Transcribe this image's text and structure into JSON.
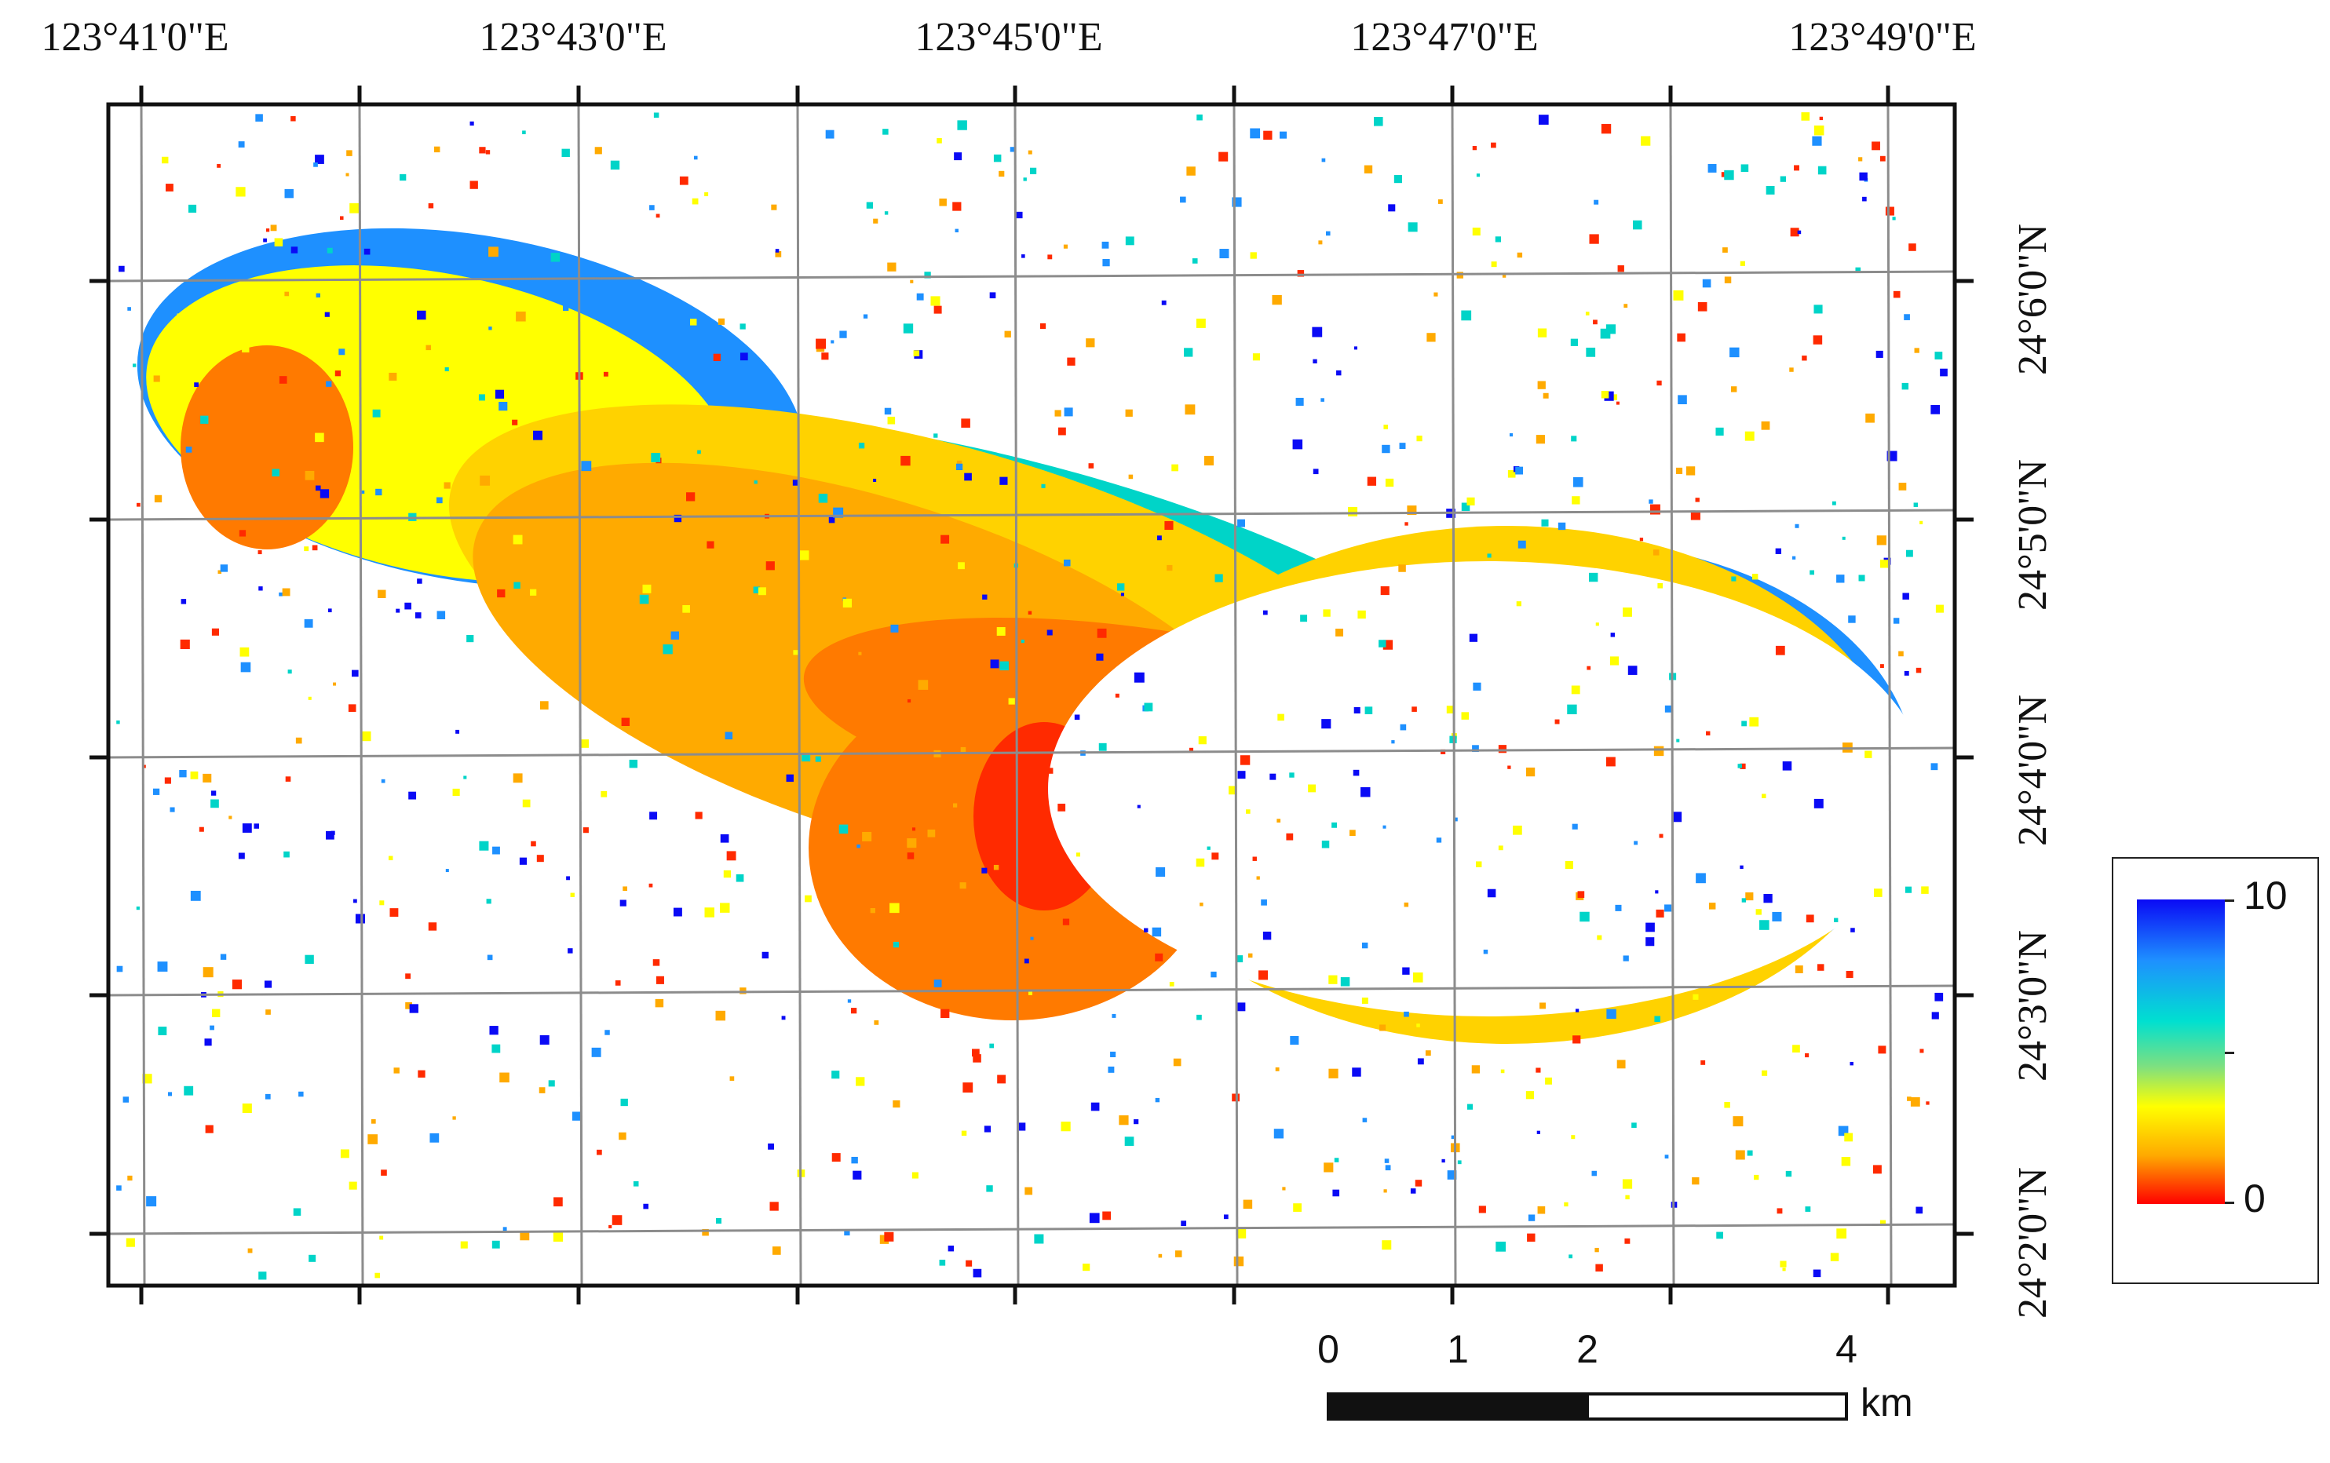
{
  "map": {
    "lon_labels": [
      "123°41'0\"E",
      "123°43'0\"E",
      "123°45'0\"E",
      "123°47'0\"E",
      "123°49'0\"E"
    ],
    "lat_labels": [
      "24°2'0\"N",
      "24°3'0\"N",
      "24°4'0\"N",
      "24°5'0\"N",
      "24°6'0\"N"
    ],
    "raster_colors": [
      "#ff2a00",
      "#ff7a00",
      "#ffaa00",
      "#ffd200",
      "#ffff00",
      "#00d4c8",
      "#1e90ff",
      "#0a0af5"
    ]
  },
  "scale_bar": {
    "ticks": [
      "0",
      "1",
      "2",
      "4"
    ],
    "unit": "km"
  },
  "legend": {
    "max_label": "10",
    "min_label": "0",
    "colors": [
      "#0a0af5",
      "#1e90ff",
      "#00e0d0",
      "#7fe07f",
      "#ffff00",
      "#ffaa00",
      "#ff0000"
    ]
  }
}
